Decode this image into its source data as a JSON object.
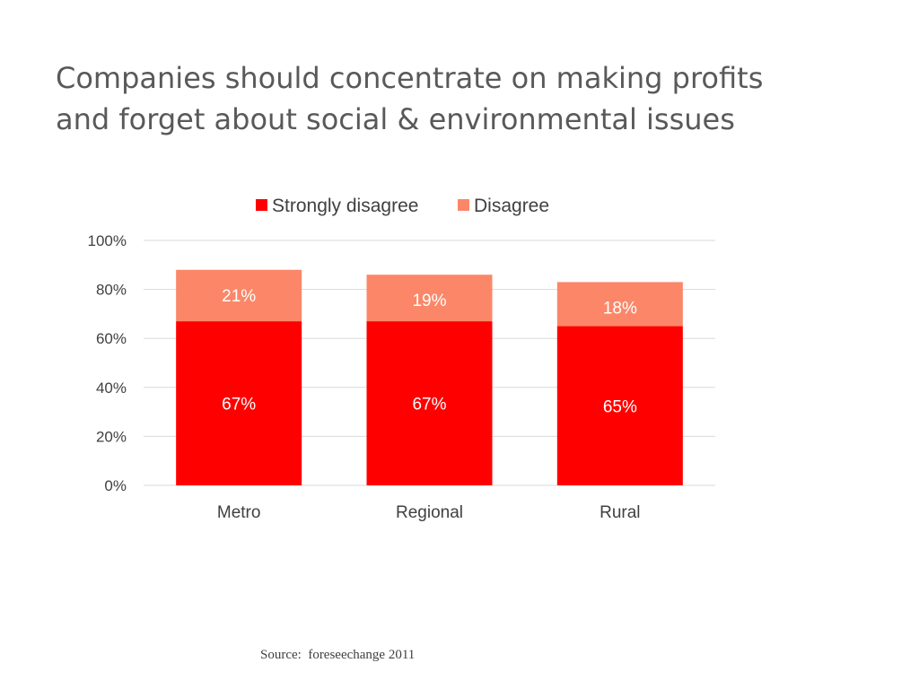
{
  "slide": {
    "title_line1": "Companies should concentrate on making profits",
    "title_line2": "and forget about social & environmental issues",
    "source": "Source:  foreseechange 2011"
  },
  "colors": {
    "strongly_disagree": "#ff0000",
    "disagree": "#fb8768",
    "gridline": "#d9d9d9",
    "axis_text": "#404040",
    "bar_label": "#ffffff"
  },
  "chart_data": {
    "type": "bar",
    "stacked": true,
    "categories": [
      "Metro",
      "Regional",
      "Rural"
    ],
    "series": [
      {
        "name": "Strongly disagree",
        "values": [
          67,
          67,
          65
        ],
        "labels": [
          "67%",
          "67%",
          "65%"
        ],
        "color": "#ff0000"
      },
      {
        "name": "Disagree",
        "values": [
          21,
          19,
          18
        ],
        "labels": [
          "21%",
          "19%",
          "18%"
        ],
        "color": "#fb8768"
      }
    ],
    "ylim": [
      0,
      100
    ],
    "yticks": [
      0,
      20,
      40,
      60,
      80,
      100
    ],
    "ytick_labels": [
      "0%",
      "20%",
      "40%",
      "60%",
      "80%",
      "100%"
    ],
    "grid": true,
    "legend": "top"
  }
}
